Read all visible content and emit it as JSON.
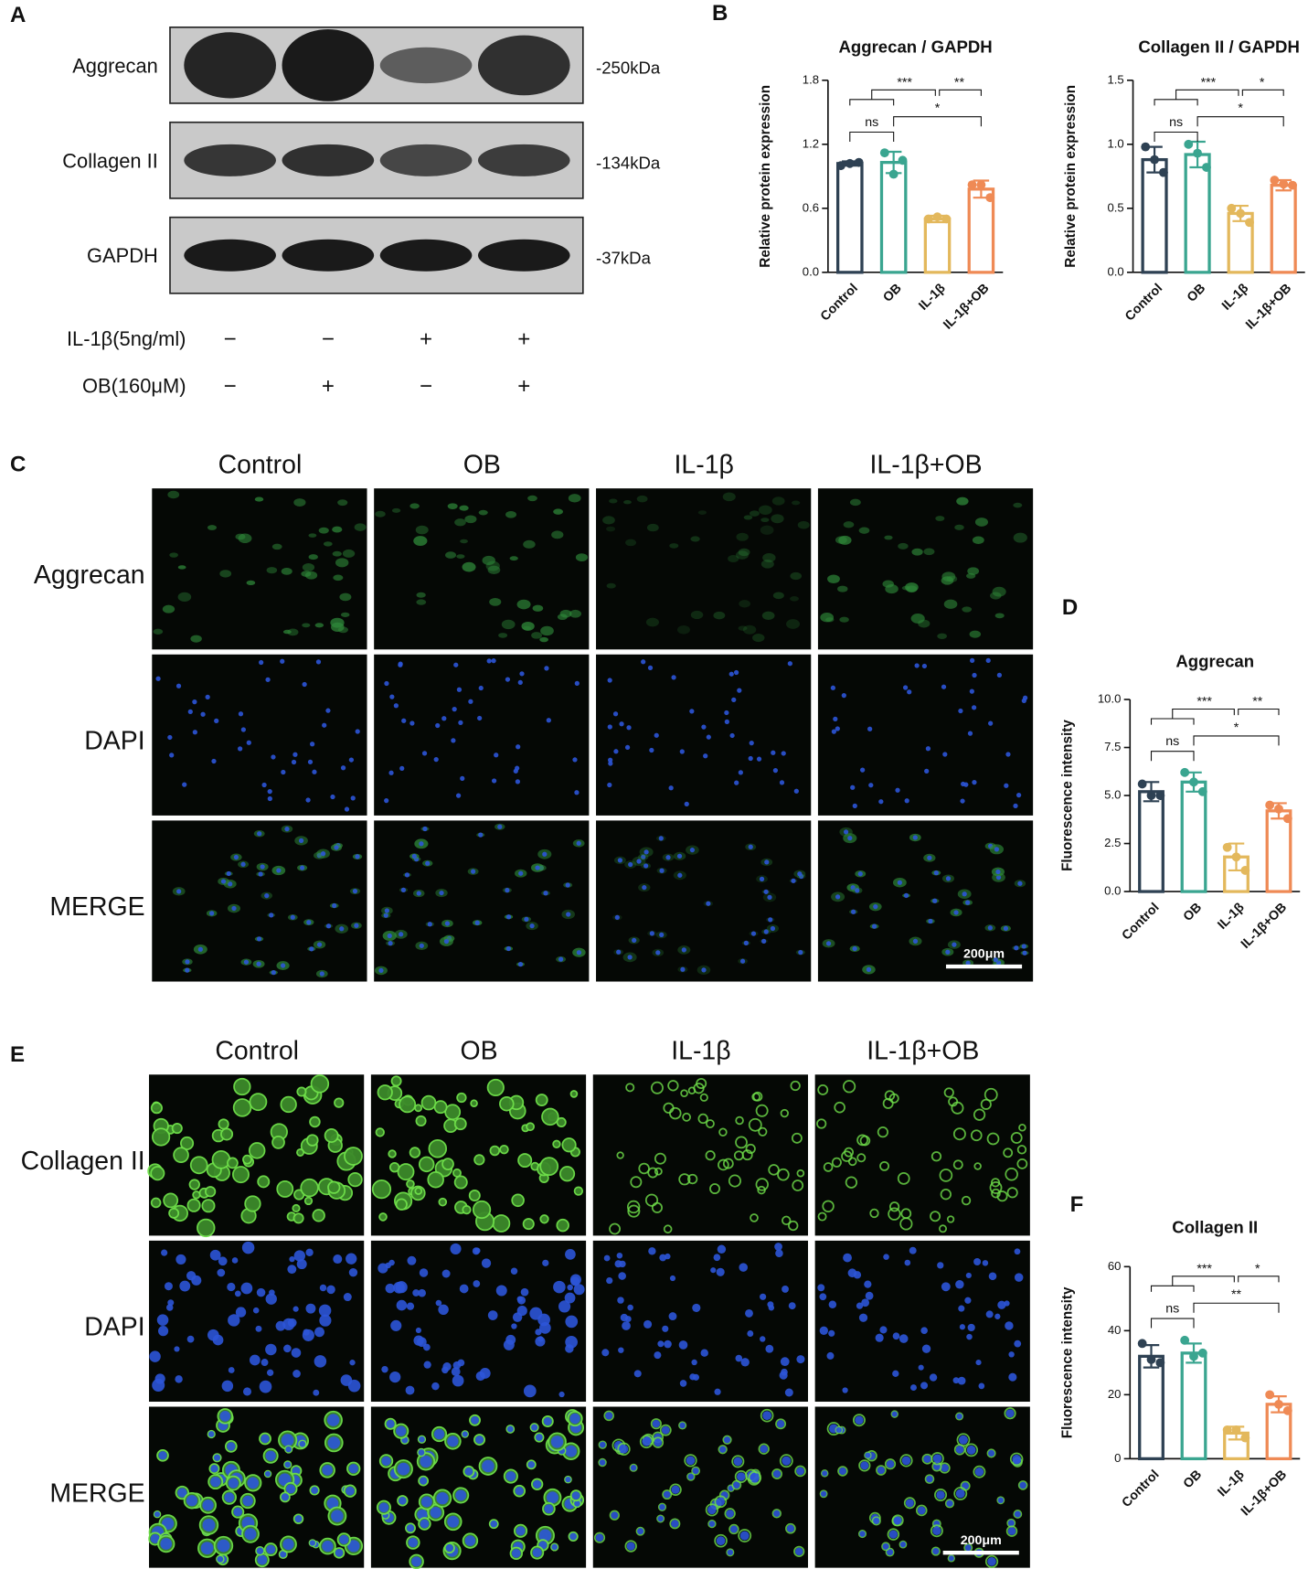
{
  "panel_labels": [
    "A",
    "B",
    "C",
    "D",
    "E",
    "F"
  ],
  "blot": {
    "proteins": [
      "Aggrecan",
      "Collagen II",
      "GAPDH"
    ],
    "sizes": [
      "-250kDa",
      "-134kDa",
      "-37kDa"
    ],
    "treatments": [
      {
        "name": "IL-1β(5ng/ml)",
        "signs": [
          "−",
          "−",
          "+",
          "+"
        ]
      },
      {
        "name": "OB(160μM)",
        "signs": [
          "−",
          "+",
          "−",
          "+"
        ]
      }
    ]
  },
  "if_aggrecan": {
    "columns": [
      "Control",
      "OB",
      "IL-1β",
      "IL-1β+OB"
    ],
    "rows": [
      "Aggrecan",
      "DAPI",
      "MERGE"
    ],
    "scale_bar": "200μm"
  },
  "if_collagen": {
    "columns": [
      "Control",
      "OB",
      "IL-1β",
      "IL-1β+OB"
    ],
    "rows": [
      "Collagen II",
      "DAPI",
      "MERGE"
    ],
    "scale_bar": "200μm"
  },
  "chart_data": [
    {
      "type": "bar",
      "title": "Aggrecan / GAPDH",
      "y_label": "Relative protein expression",
      "categories": [
        "Control",
        "OB",
        "IL-1β",
        "IL-1β+OB"
      ],
      "colors": [
        "#2e4153",
        "#3aa590",
        "#e3b85c",
        "#ef8a55"
      ],
      "values": [
        1.02,
        1.03,
        0.5,
        0.78
      ],
      "errors": [
        0.02,
        0.1,
        0.03,
        0.08
      ],
      "points": [
        [
          1.0,
          1.02,
          1.03
        ],
        [
          1.12,
          0.92,
          1.05
        ],
        [
          0.5,
          0.52,
          0.5
        ],
        [
          0.82,
          0.82,
          0.7
        ]
      ],
      "ylim": [
        0,
        1.8
      ],
      "yticks": [
        {
          "value": 0,
          "label": "0.0"
        },
        0.6,
        1.2,
        1.8
      ],
      "annotations": [
        "ns",
        "***",
        "**",
        "*"
      ]
    },
    {
      "type": "bar",
      "title": "Collagen II / GAPDH",
      "y_label": "Relative protein expression",
      "categories": [
        "Control",
        "OB",
        "IL-1β",
        "IL-1β+OB"
      ],
      "colors": [
        "#2e4153",
        "#3aa590",
        "#e3b85c",
        "#ef8a55"
      ],
      "values": [
        0.88,
        0.92,
        0.46,
        0.68
      ],
      "errors": [
        0.1,
        0.1,
        0.06,
        0.04
      ],
      "points": [
        [
          0.98,
          0.88,
          0.78
        ],
        [
          1.0,
          0.93,
          0.82
        ],
        [
          0.5,
          0.46,
          0.39
        ],
        [
          0.72,
          0.69,
          0.68
        ]
      ],
      "ylim": [
        0,
        1.5
      ],
      "yticks": [
        {
          "value": 0,
          "label": "0.0"
        },
        0.5,
        {
          "value": 1,
          "label": "1.0"
        },
        1.5
      ],
      "annotations": [
        "ns",
        "***",
        "*",
        "*"
      ]
    },
    {
      "type": "bar",
      "title": "Aggrecan",
      "y_label": "Fluorescence intensity",
      "categories": [
        "Control",
        "OB",
        "IL-1β",
        "IL-1β+OB"
      ],
      "colors": [
        "#2e4153",
        "#3aa590",
        "#e3b85c",
        "#ef8a55"
      ],
      "values": [
        5.2,
        5.7,
        1.8,
        4.2
      ],
      "errors": [
        0.5,
        0.5,
        0.7,
        0.4
      ],
      "points": [
        [
          5.6,
          5.0,
          5.0
        ],
        [
          6.2,
          5.7,
          5.2
        ],
        [
          2.3,
          1.8,
          1.1
        ],
        [
          4.5,
          4.3,
          3.8
        ]
      ],
      "ylim": [
        0,
        10
      ],
      "yticks": [
        {
          "value": 0,
          "label": "0.0"
        },
        2.5,
        {
          "value": 5,
          "label": "5.0"
        },
        7.5,
        {
          "value": 10,
          "label": "10.0"
        }
      ],
      "annotations": [
        "ns",
        "***",
        "**",
        "*"
      ]
    },
    {
      "type": "bar",
      "title": "Collagen II",
      "y_label": "Fluorescence intensity",
      "categories": [
        "Control",
        "OB",
        "IL-1β",
        "IL-1β+OB"
      ],
      "colors": [
        "#2e4153",
        "#3aa590",
        "#e3b85c",
        "#ef8a55"
      ],
      "values": [
        32,
        33,
        8,
        17
      ],
      "errors": [
        3.5,
        3,
        2,
        2.5
      ],
      "points": [
        [
          36,
          31,
          30
        ],
        [
          37,
          32,
          33
        ],
        [
          9,
          9,
          6.5
        ],
        [
          20,
          17,
          15
        ]
      ],
      "ylim": [
        0,
        60
      ],
      "yticks": [
        0,
        20,
        40,
        60
      ],
      "annotations": [
        "ns",
        "***",
        "*",
        "**"
      ]
    }
  ]
}
